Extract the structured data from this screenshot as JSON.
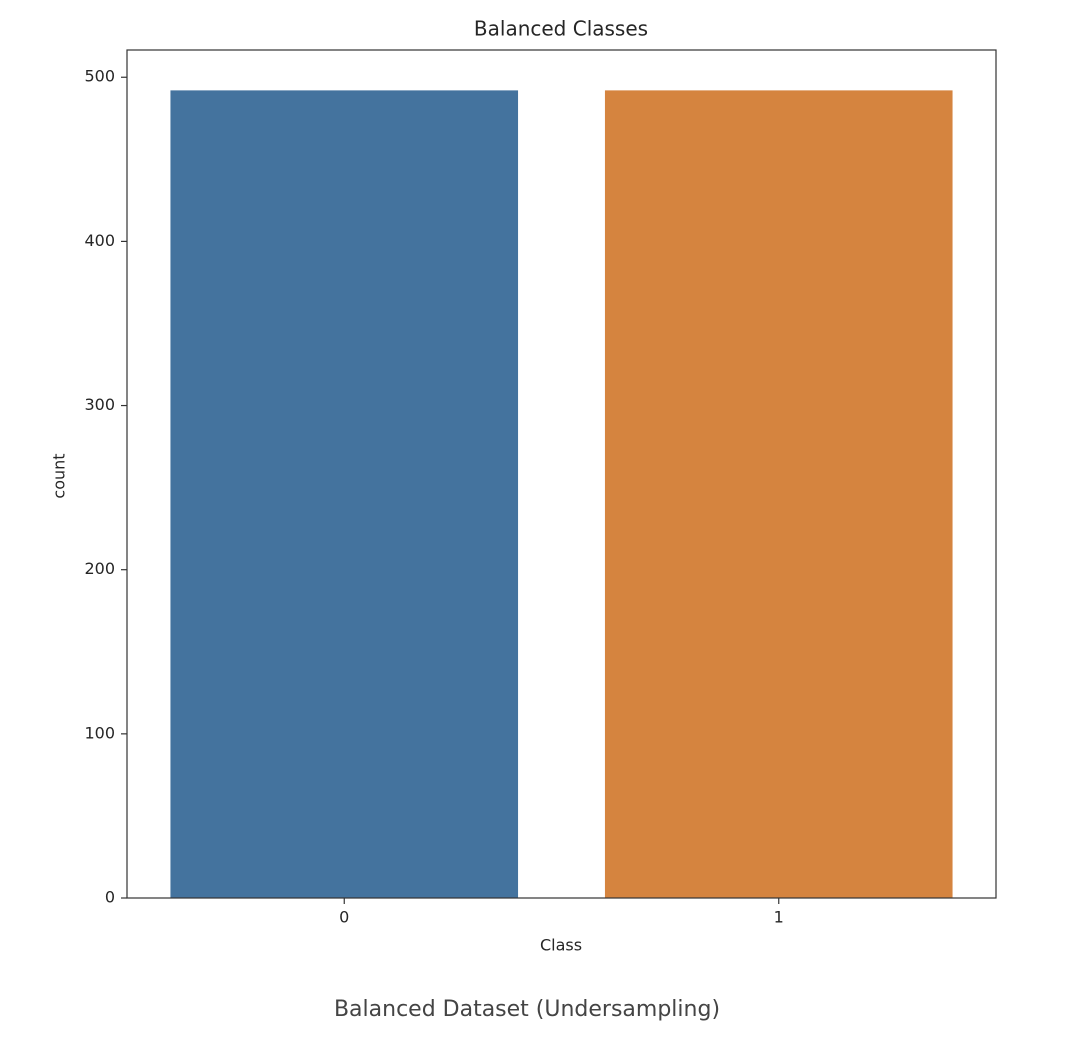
{
  "chart_data": {
    "type": "bar",
    "title": "Balanced Classes",
    "x_label": "Class",
    "y_label": "count",
    "categories": [
      "0",
      "1"
    ],
    "values": [
      492,
      492
    ],
    "colors": [
      "#44739e",
      "#d5843f"
    ],
    "ylim": [
      0,
      516.6
    ],
    "yticks": [
      0,
      100,
      200,
      300,
      400,
      500
    ],
    "grid": false
  },
  "caption": "Balanced Dataset (Undersampling)"
}
